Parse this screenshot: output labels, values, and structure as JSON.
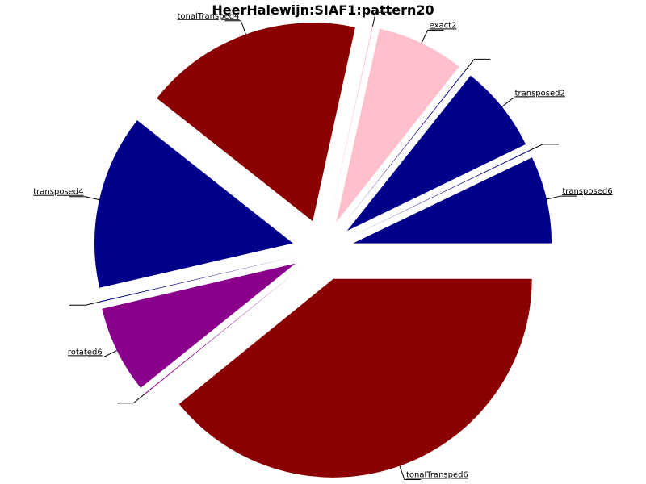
{
  "chart_data": {
    "type": "pie",
    "title": "HeerHalewijn:SIAF1:pattern20",
    "slices": [
      {
        "label": "transposed6",
        "value": 2,
        "color": "#00008b"
      },
      {
        "label": "",
        "value": 0.02,
        "color": "#00008b"
      },
      {
        "label": "transposed2",
        "value": 2,
        "color": "#00008b"
      },
      {
        "label": "",
        "value": 0.02,
        "color": "#00008b"
      },
      {
        "label": "exact2",
        "value": 2,
        "color": "#ffc0cb"
      },
      {
        "label": "",
        "value": 0.02,
        "color": "#ffc0cb"
      },
      {
        "label": "tonalTransped4",
        "value": 5,
        "color": "#8b0000"
      },
      {
        "label": "transposed4",
        "value": 4,
        "color": "#00008b"
      },
      {
        "label": "",
        "value": 0.02,
        "color": "#00008b"
      },
      {
        "label": "rotated6",
        "value": 2,
        "color": "#8b008b"
      },
      {
        "label": "",
        "value": 0.02,
        "color": "#8b008b"
      },
      {
        "label": "tonalTransped6",
        "value": 11,
        "color": "#8b0000"
      }
    ],
    "legend": "none",
    "start_angle_deg": 0,
    "direction": "counterclockwise"
  }
}
